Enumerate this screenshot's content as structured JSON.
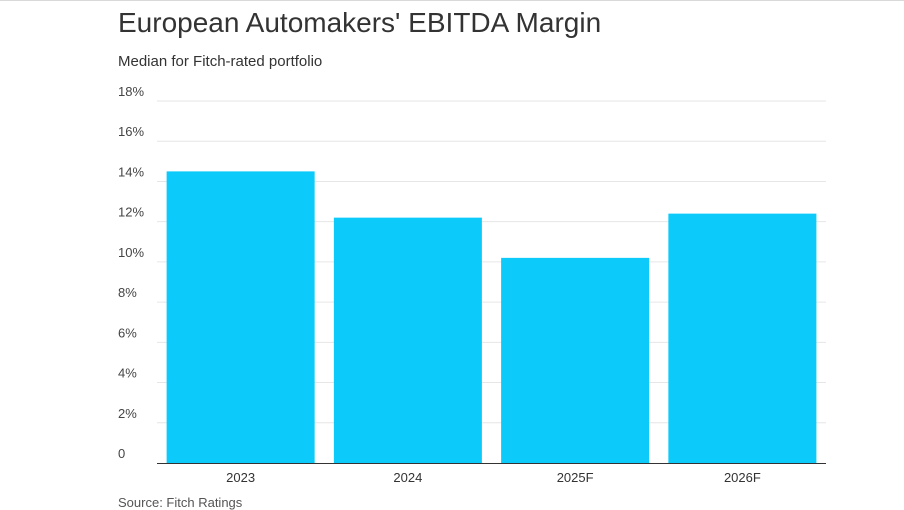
{
  "header": {
    "title": "European Automakers' EBITDA Margin",
    "subtitle": "Median for Fitch-rated portfolio"
  },
  "footer": {
    "source": "Source: Fitch Ratings"
  },
  "colors": {
    "bar": "#0ccbfb",
    "grid": "#e6e6e6",
    "axis": "#333333"
  },
  "chart_data": {
    "type": "bar",
    "title": "European Automakers' EBITDA Margin",
    "subtitle": "Median for Fitch-rated portfolio",
    "categories": [
      "2023",
      "2024",
      "2025F",
      "2026F"
    ],
    "values": [
      14.5,
      12.2,
      10.2,
      12.4
    ],
    "unit": "%",
    "ylim": [
      0,
      18
    ],
    "yticks": [
      0,
      2,
      4,
      6,
      8,
      10,
      12,
      14,
      16,
      18
    ],
    "ytick_labels": [
      "0",
      "2%",
      "4%",
      "6%",
      "8%",
      "10%",
      "12%",
      "14%",
      "16%",
      "18%"
    ],
    "xlabel": "",
    "ylabel": "",
    "grid": true,
    "legend": "none"
  }
}
